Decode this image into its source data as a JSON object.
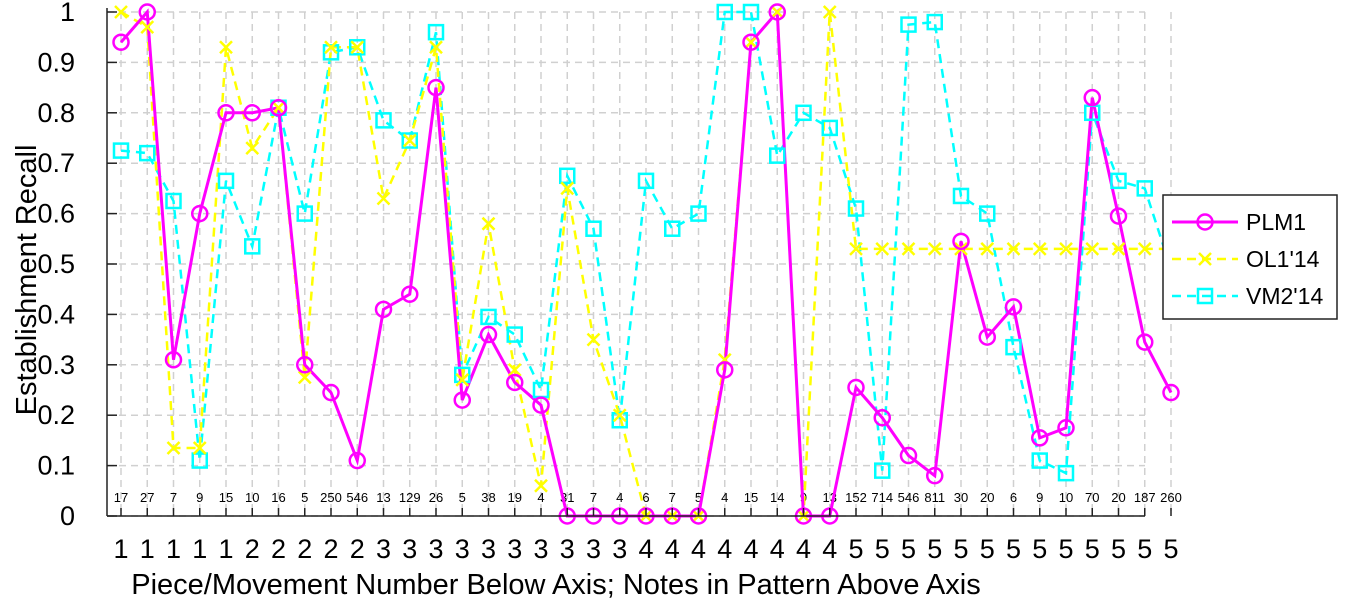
{
  "chart_data": {
    "type": "line",
    "ylabel": "Establishment Recall",
    "xlabel": "Piece/Movement Number Below Axis; Notes in Pattern Above Axis",
    "ylim": [
      0,
      1
    ],
    "yticks": [
      0,
      0.1,
      0.2,
      0.3,
      0.4,
      0.5,
      0.6,
      0.7,
      0.8,
      0.9,
      1
    ],
    "ytick_labels": [
      "0",
      "0.1",
      "0.2",
      "0.3",
      "0.4",
      "0.5",
      "0.6",
      "0.7",
      "0.8",
      "0.9",
      "1"
    ],
    "grid": true,
    "legend_position": "right",
    "piece_numbers": [
      "1",
      "1",
      "1",
      "1",
      "1",
      "2",
      "2",
      "2",
      "2",
      "2",
      "3",
      "3",
      "3",
      "3",
      "3",
      "3",
      "3",
      "3",
      "3",
      "3",
      "4",
      "4",
      "4",
      "4",
      "4",
      "4",
      "4",
      "4",
      "5",
      "5",
      "5",
      "5",
      "5",
      "5",
      "5",
      "5",
      "5",
      "5",
      "5",
      "5",
      "5"
    ],
    "note_counts": [
      "17",
      "27",
      "7",
      "9",
      "15",
      "10",
      "16",
      "5",
      "250",
      "546",
      "13",
      "129",
      "26",
      "5",
      "38",
      "19",
      "4",
      "31",
      "7",
      "4",
      "6",
      "7",
      "5",
      "4",
      "15",
      "14",
      "9",
      "13",
      "152",
      "714",
      "546",
      "811",
      "30",
      "20",
      "6",
      "9",
      "10",
      "70",
      "20",
      "187",
      "260"
    ],
    "series": [
      {
        "name": "PLM1",
        "color": "#ff00ff",
        "marker": "circle",
        "line_style": "solid",
        "values": [
          0.94,
          1.0,
          0.31,
          0.6,
          0.8,
          0.8,
          0.81,
          0.3,
          0.245,
          0.11,
          0.41,
          0.44,
          0.85,
          0.23,
          0.36,
          0.265,
          0.22,
          0.0,
          0.0,
          0.0,
          0.0,
          0.0,
          0.0,
          0.29,
          0.94,
          1.0,
          0.0,
          0.0,
          0.255,
          0.195,
          0.12,
          0.08,
          0.545,
          0.355,
          0.415,
          0.155,
          0.175,
          0.83,
          0.595,
          0.345,
          0.245
        ]
      },
      {
        "name": "OL1'14",
        "color": "#ffff00",
        "marker": "x",
        "line_style": "dashed",
        "values": [
          1.0,
          0.97,
          0.135,
          0.135,
          0.93,
          0.73,
          0.81,
          0.275,
          0.93,
          0.93,
          0.63,
          0.745,
          0.93,
          0.27,
          0.58,
          0.29,
          0.06,
          0.65,
          0.35,
          0.2,
          0.0,
          0.0,
          0.0,
          0.31,
          0.94,
          1.0,
          0.0,
          1.0,
          0.53,
          0.53,
          0.53,
          0.53,
          0.53,
          0.53,
          0.53,
          0.53,
          0.53,
          0.53,
          0.53,
          0.53,
          0.53
        ]
      },
      {
        "name": "VM2'14",
        "color": "#00ffff",
        "marker": "square",
        "line_style": "dashed",
        "values": [
          0.725,
          0.72,
          0.625,
          0.11,
          0.665,
          0.535,
          0.81,
          0.6,
          0.92,
          0.93,
          0.785,
          0.745,
          0.96,
          0.28,
          0.395,
          0.36,
          0.25,
          0.675,
          0.57,
          0.19,
          0.665,
          0.57,
          0.6,
          1.0,
          1.0,
          0.715,
          0.8,
          0.77,
          0.61,
          0.09,
          0.975,
          0.98,
          0.635,
          0.6,
          0.335,
          0.11,
          0.085,
          0.8,
          0.665,
          0.65,
          0.49
        ]
      }
    ]
  }
}
